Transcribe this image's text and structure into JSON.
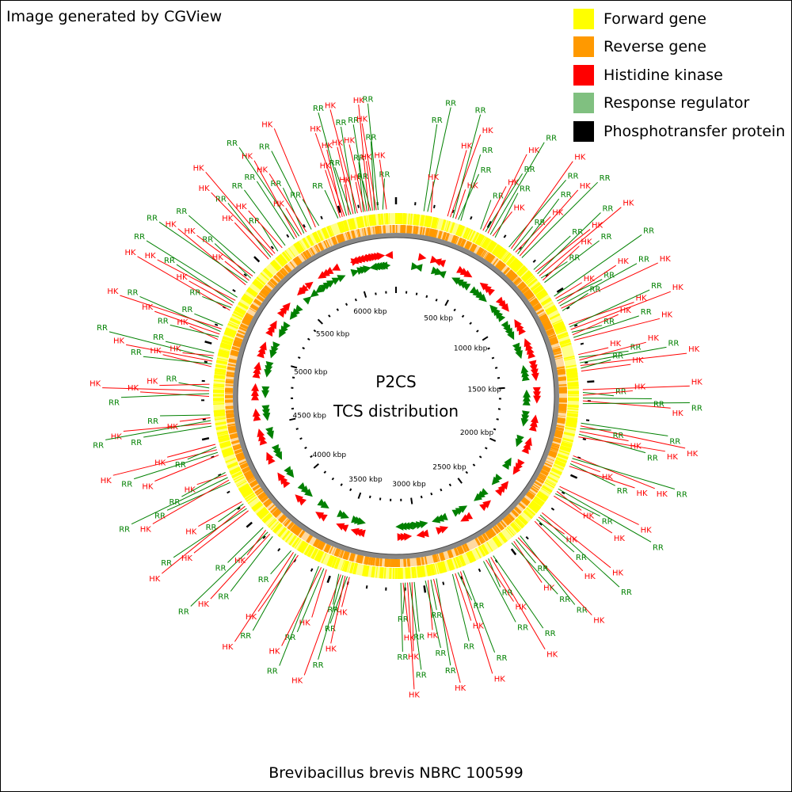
{
  "attribution": "Image generated by CGView",
  "caption": "Brevibacillus brevis NBRC 100599",
  "center": {
    "title": "P2CS",
    "subtitle": "TCS distribution"
  },
  "legend": [
    {
      "label": "Forward gene",
      "color": "#ffff00"
    },
    {
      "label": "Reverse gene",
      "color": "#ff9900"
    },
    {
      "label": "Histidine kinase",
      "color": "#ff0000"
    },
    {
      "label": "Response regulator",
      "color": "#80c080"
    },
    {
      "label": "Phosphotransfer protein",
      "color": "#000000"
    }
  ],
  "genome": {
    "length_kbp": 6296,
    "tick_labels": [
      {
        "kbp": 500,
        "text": "500 kbp"
      },
      {
        "kbp": 1000,
        "text": "1000 kbp"
      },
      {
        "kbp": 1500,
        "text": "1500 kbp"
      },
      {
        "kbp": 2000,
        "text": "2000 kbp"
      },
      {
        "kbp": 2500,
        "text": "2500 kbp"
      },
      {
        "kbp": 3000,
        "text": "3000 kbp"
      },
      {
        "kbp": 3500,
        "text": "3500 kbp"
      },
      {
        "kbp": 4000,
        "text": "4000 kbp"
      },
      {
        "kbp": 4500,
        "text": "4500 kbp"
      },
      {
        "kbp": 5000,
        "text": "5000 kbp"
      },
      {
        "kbp": 5500,
        "text": "5500 kbp"
      },
      {
        "kbp": 6000,
        "text": "6000 kbp"
      }
    ]
  },
  "features": [
    {
      "kbp": 5980,
      "type": "RR"
    },
    {
      "kbp": 5992,
      "type": "HK"
    },
    {
      "kbp": 6004,
      "type": "HK"
    },
    {
      "kbp": 6016,
      "type": "HK"
    },
    {
      "kbp": 6028,
      "type": "RR"
    },
    {
      "kbp": 6040,
      "type": "HK"
    },
    {
      "kbp": 6052,
      "type": "RR"
    },
    {
      "kbp": 6064,
      "type": "HK"
    },
    {
      "kbp": 6076,
      "type": "RR"
    },
    {
      "kbp": 6088,
      "type": "HK"
    },
    {
      "kbp": 6110,
      "type": "HK"
    },
    {
      "kbp": 6120,
      "type": "RR"
    },
    {
      "kbp": 6130,
      "type": "HK"
    },
    {
      "kbp": 6140,
      "type": "RR"
    },
    {
      "kbp": 6150,
      "type": "HK"
    },
    {
      "kbp": 6160,
      "type": "RR"
    },
    {
      "kbp": 6170,
      "type": "HK"
    },
    {
      "kbp": 6180,
      "type": "RR"
    },
    {
      "kbp": 6190,
      "type": "HK"
    },
    {
      "kbp": 6200,
      "type": "RR"
    },
    {
      "kbp": 6225,
      "type": "RR"
    },
    {
      "kbp": 6245,
      "type": "HK"
    },
    {
      "kbp": 5720,
      "type": "RR"
    },
    {
      "kbp": 5735,
      "type": "HK"
    },
    {
      "kbp": 5750,
      "type": "RR"
    },
    {
      "kbp": 5765,
      "type": "HK"
    },
    {
      "kbp": 5780,
      "type": "RR"
    },
    {
      "kbp": 5795,
      "type": "HK"
    },
    {
      "kbp": 5825,
      "type": "RR"
    },
    {
      "kbp": 5850,
      "type": "HK"
    },
    {
      "kbp": 5870,
      "type": "RR"
    },
    {
      "kbp": 5545,
      "type": "HK"
    },
    {
      "kbp": 5560,
      "type": "RR"
    },
    {
      "kbp": 5575,
      "type": "HK"
    },
    {
      "kbp": 5590,
      "type": "HK"
    },
    {
      "kbp": 5610,
      "type": "RR"
    },
    {
      "kbp": 5640,
      "type": "HK"
    },
    {
      "kbp": 5660,
      "type": "RR"
    },
    {
      "kbp": 5360,
      "type": "HK"
    },
    {
      "kbp": 5375,
      "type": "RR"
    },
    {
      "kbp": 5390,
      "type": "HK"
    },
    {
      "kbp": 5405,
      "type": "RR"
    },
    {
      "kbp": 5420,
      "type": "HK"
    },
    {
      "kbp": 5440,
      "type": "RR"
    },
    {
      "kbp": 5200,
      "type": "HK"
    },
    {
      "kbp": 5215,
      "type": "RR"
    },
    {
      "kbp": 5230,
      "type": "HK"
    },
    {
      "kbp": 5245,
      "type": "RR"
    },
    {
      "kbp": 5260,
      "type": "HK"
    },
    {
      "kbp": 5280,
      "type": "RR"
    },
    {
      "kbp": 5030,
      "type": "HK"
    },
    {
      "kbp": 5045,
      "type": "RR"
    },
    {
      "kbp": 5060,
      "type": "HK"
    },
    {
      "kbp": 5075,
      "type": "RR"
    },
    {
      "kbp": 5090,
      "type": "HK"
    },
    {
      "kbp": 5110,
      "type": "RR"
    },
    {
      "kbp": 4880,
      "type": "HK"
    },
    {
      "kbp": 4895,
      "type": "RR"
    },
    {
      "kbp": 4910,
      "type": "HK"
    },
    {
      "kbp": 4925,
      "type": "RR"
    },
    {
      "kbp": 4940,
      "type": "HK"
    },
    {
      "kbp": 4955,
      "type": "RR"
    },
    {
      "kbp": 4720,
      "type": "HK"
    },
    {
      "kbp": 4735,
      "type": "RR"
    },
    {
      "kbp": 4750,
      "type": "HK"
    },
    {
      "kbp": 4765,
      "type": "RR"
    },
    {
      "kbp": 4785,
      "type": "HK"
    },
    {
      "kbp": 4560,
      "type": "RR"
    },
    {
      "kbp": 4575,
      "type": "HK"
    },
    {
      "kbp": 4590,
      "type": "RR"
    },
    {
      "kbp": 4605,
      "type": "HK"
    },
    {
      "kbp": 4620,
      "type": "RR"
    },
    {
      "kbp": 4400,
      "type": "HK"
    },
    {
      "kbp": 4415,
      "type": "RR"
    },
    {
      "kbp": 4430,
      "type": "HK"
    },
    {
      "kbp": 4445,
      "type": "RR"
    },
    {
      "kbp": 4460,
      "type": "HK"
    },
    {
      "kbp": 4240,
      "type": "RR"
    },
    {
      "kbp": 4255,
      "type": "HK"
    },
    {
      "kbp": 4270,
      "type": "RR"
    },
    {
      "kbp": 4285,
      "type": "HK"
    },
    {
      "kbp": 4300,
      "type": "RR"
    },
    {
      "kbp": 4060,
      "type": "HK"
    },
    {
      "kbp": 4075,
      "type": "RR"
    },
    {
      "kbp": 4090,
      "type": "HK"
    },
    {
      "kbp": 4105,
      "type": "RR"
    },
    {
      "kbp": 4120,
      "type": "HK"
    },
    {
      "kbp": 3870,
      "type": "RR"
    },
    {
      "kbp": 3890,
      "type": "HK"
    },
    {
      "kbp": 3905,
      "type": "RR"
    },
    {
      "kbp": 3920,
      "type": "HK"
    },
    {
      "kbp": 3940,
      "type": "RR"
    },
    {
      "kbp": 3700,
      "type": "HK"
    },
    {
      "kbp": 3715,
      "type": "RR"
    },
    {
      "kbp": 3730,
      "type": "HK"
    },
    {
      "kbp": 3745,
      "type": "RR"
    },
    {
      "kbp": 3530,
      "type": "HK"
    },
    {
      "kbp": 3545,
      "type": "RR"
    },
    {
      "kbp": 3560,
      "type": "HK"
    },
    {
      "kbp": 3575,
      "type": "RR"
    },
    {
      "kbp": 3400,
      "type": "HK"
    },
    {
      "kbp": 3412,
      "type": "RR"
    },
    {
      "kbp": 3424,
      "type": "HK"
    },
    {
      "kbp": 3436,
      "type": "RR"
    },
    {
      "kbp": 3448,
      "type": "HK"
    },
    {
      "kbp": 3460,
      "type": "RR"
    },
    {
      "kbp": 3050,
      "type": "RR"
    },
    {
      "kbp": 3062,
      "type": "HK"
    },
    {
      "kbp": 3074,
      "type": "RR"
    },
    {
      "kbp": 3086,
      "type": "HK"
    },
    {
      "kbp": 3098,
      "type": "RR"
    },
    {
      "kbp": 3110,
      "type": "HK"
    },
    {
      "kbp": 3122,
      "type": "RR"
    },
    {
      "kbp": 2930,
      "type": "RR"
    },
    {
      "kbp": 2945,
      "type": "HK"
    },
    {
      "kbp": 2960,
      "type": "RR"
    },
    {
      "kbp": 2975,
      "type": "HK"
    },
    {
      "kbp": 2990,
      "type": "RR"
    },
    {
      "kbp": 2780,
      "type": "RR"
    },
    {
      "kbp": 2795,
      "type": "HK"
    },
    {
      "kbp": 2810,
      "type": "RR"
    },
    {
      "kbp": 2825,
      "type": "HK"
    },
    {
      "kbp": 2840,
      "type": "RR"
    },
    {
      "kbp": 2600,
      "type": "RR"
    },
    {
      "kbp": 2615,
      "type": "HK"
    },
    {
      "kbp": 2630,
      "type": "RR"
    },
    {
      "kbp": 2645,
      "type": "HK"
    },
    {
      "kbp": 2660,
      "type": "RR"
    },
    {
      "kbp": 2420,
      "type": "RR"
    },
    {
      "kbp": 2435,
      "type": "HK"
    },
    {
      "kbp": 2450,
      "type": "RR"
    },
    {
      "kbp": 2465,
      "type": "HK"
    },
    {
      "kbp": 2480,
      "type": "RR"
    },
    {
      "kbp": 2250,
      "type": "HK"
    },
    {
      "kbp": 2265,
      "type": "RR"
    },
    {
      "kbp": 2280,
      "type": "HK"
    },
    {
      "kbp": 2295,
      "type": "RR"
    },
    {
      "kbp": 2310,
      "type": "HK"
    },
    {
      "kbp": 2080,
      "type": "HK"
    },
    {
      "kbp": 2095,
      "type": "RR"
    },
    {
      "kbp": 2110,
      "type": "HK"
    },
    {
      "kbp": 2125,
      "type": "RR"
    },
    {
      "kbp": 2140,
      "type": "HK"
    },
    {
      "kbp": 1900,
      "type": "HK"
    },
    {
      "kbp": 1915,
      "type": "RR"
    },
    {
      "kbp": 1930,
      "type": "HK"
    },
    {
      "kbp": 1945,
      "type": "RR"
    },
    {
      "kbp": 1960,
      "type": "HK"
    },
    {
      "kbp": 1720,
      "type": "RR"
    },
    {
      "kbp": 1735,
      "type": "HK"
    },
    {
      "kbp": 1750,
      "type": "RR"
    },
    {
      "kbp": 1765,
      "type": "HK"
    },
    {
      "kbp": 1780,
      "type": "RR"
    },
    {
      "kbp": 1795,
      "type": "HK"
    },
    {
      "kbp": 1540,
      "type": "HK"
    },
    {
      "kbp": 1555,
      "type": "RR"
    },
    {
      "kbp": 1570,
      "type": "HK"
    },
    {
      "kbp": 1585,
      "type": "RR"
    },
    {
      "kbp": 1600,
      "type": "HK"
    },
    {
      "kbp": 1615,
      "type": "RR"
    },
    {
      "kbp": 1350,
      "type": "HK"
    },
    {
      "kbp": 1365,
      "type": "RR"
    },
    {
      "kbp": 1380,
      "type": "HK"
    },
    {
      "kbp": 1395,
      "type": "RR"
    },
    {
      "kbp": 1410,
      "type": "HK"
    },
    {
      "kbp": 1425,
      "type": "RR"
    },
    {
      "kbp": 1440,
      "type": "HK"
    },
    {
      "kbp": 1180,
      "type": "HK"
    },
    {
      "kbp": 1195,
      "type": "RR"
    },
    {
      "kbp": 1210,
      "type": "HK"
    },
    {
      "kbp": 1225,
      "type": "RR"
    },
    {
      "kbp": 1240,
      "type": "HK"
    },
    {
      "kbp": 1255,
      "type": "RR"
    },
    {
      "kbp": 1270,
      "type": "HK"
    },
    {
      "kbp": 1010,
      "type": "RR"
    },
    {
      "kbp": 1025,
      "type": "HK"
    },
    {
      "kbp": 1040,
      "type": "RR"
    },
    {
      "kbp": 1055,
      "type": "HK"
    },
    {
      "kbp": 1070,
      "type": "RR"
    },
    {
      "kbp": 1085,
      "type": "HK"
    },
    {
      "kbp": 1100,
      "type": "RR"
    },
    {
      "kbp": 830,
      "type": "RR"
    },
    {
      "kbp": 845,
      "type": "HK"
    },
    {
      "kbp": 860,
      "type": "RR"
    },
    {
      "kbp": 875,
      "type": "HK"
    },
    {
      "kbp": 890,
      "type": "RR"
    },
    {
      "kbp": 905,
      "type": "HK"
    },
    {
      "kbp": 920,
      "type": "RR"
    },
    {
      "kbp": 650,
      "type": "RR"
    },
    {
      "kbp": 665,
      "type": "HK"
    },
    {
      "kbp": 680,
      "type": "RR"
    },
    {
      "kbp": 695,
      "type": "HK"
    },
    {
      "kbp": 710,
      "type": "RR"
    },
    {
      "kbp": 725,
      "type": "HK"
    },
    {
      "kbp": 740,
      "type": "RR"
    },
    {
      "kbp": 470,
      "type": "RR"
    },
    {
      "kbp": 485,
      "type": "HK"
    },
    {
      "kbp": 500,
      "type": "RR"
    },
    {
      "kbp": 515,
      "type": "HK"
    },
    {
      "kbp": 530,
      "type": "RR"
    },
    {
      "kbp": 545,
      "type": "HK"
    },
    {
      "kbp": 560,
      "type": "RR"
    },
    {
      "kbp": 280,
      "type": "HK"
    },
    {
      "kbp": 295,
      "type": "HK"
    },
    {
      "kbp": 310,
      "type": "RR"
    },
    {
      "kbp": 325,
      "type": "HK"
    },
    {
      "kbp": 340,
      "type": "RR"
    },
    {
      "kbp": 355,
      "type": "RR"
    },
    {
      "kbp": 150,
      "type": "RR"
    },
    {
      "kbp": 170,
      "type": "RR"
    },
    {
      "kbp": 190,
      "type": "HK"
    }
  ]
}
